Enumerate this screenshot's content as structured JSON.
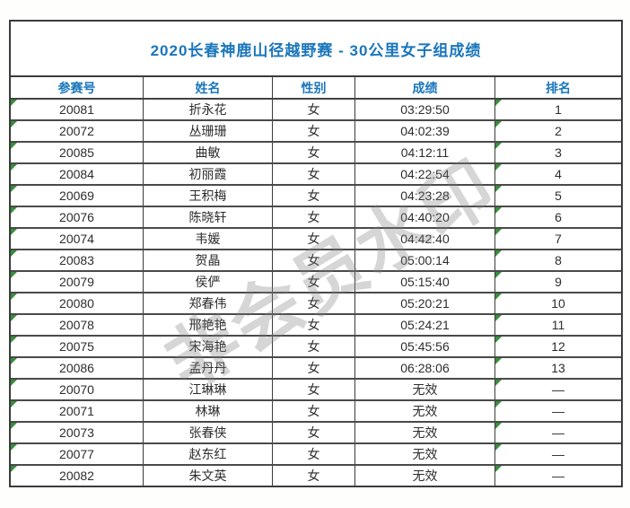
{
  "title": "2020长春神鹿山径越野赛 - 30公里女子组成绩",
  "watermark_text": "非会员水印",
  "colors": {
    "title_blue": "#1a76bb",
    "header_blue": "#1a76bb",
    "error_flag_green": "#3a8e3c",
    "border_dark": "#3b3b3b"
  },
  "table": {
    "columns": [
      "参赛号",
      "姓名",
      "性别",
      "成绩",
      "排名"
    ],
    "rows": [
      {
        "bib": "20081",
        "name": "折永花",
        "gender": "女",
        "result": "03:29:50",
        "rank": "1"
      },
      {
        "bib": "20072",
        "name": "丛珊珊",
        "gender": "女",
        "result": "04:02:39",
        "rank": "2"
      },
      {
        "bib": "20085",
        "name": "曲敏",
        "gender": "女",
        "result": "04:12:11",
        "rank": "3"
      },
      {
        "bib": "20084",
        "name": "初丽霞",
        "gender": "女",
        "result": "04:22:54",
        "rank": "4"
      },
      {
        "bib": "20069",
        "name": "王积梅",
        "gender": "女",
        "result": "04:23:28",
        "rank": "5"
      },
      {
        "bib": "20076",
        "name": "陈晓轩",
        "gender": "女",
        "result": "04:40:20",
        "rank": "6"
      },
      {
        "bib": "20074",
        "name": "韦媛",
        "gender": "女",
        "result": "04:42:40",
        "rank": "7"
      },
      {
        "bib": "20083",
        "name": "贺晶",
        "gender": "女",
        "result": "05:00:14",
        "rank": "8"
      },
      {
        "bib": "20079",
        "name": "侯俨",
        "gender": "女",
        "result": "05:15:40",
        "rank": "9"
      },
      {
        "bib": "20080",
        "name": "郑春伟",
        "gender": "女",
        "result": "05:20:21",
        "rank": "10"
      },
      {
        "bib": "20078",
        "name": "邢艳艳",
        "gender": "女",
        "result": "05:24:21",
        "rank": "11"
      },
      {
        "bib": "20075",
        "name": "宋海艳",
        "gender": "女",
        "result": "05:45:56",
        "rank": "12"
      },
      {
        "bib": "20086",
        "name": "孟丹丹",
        "gender": "女",
        "result": "06:28:06",
        "rank": "13"
      },
      {
        "bib": "20070",
        "name": "江琳琳",
        "gender": "女",
        "result": "无效",
        "rank": "—"
      },
      {
        "bib": "20071",
        "name": "林琳",
        "gender": "女",
        "result": "无效",
        "rank": "—"
      },
      {
        "bib": "20073",
        "name": "张春侠",
        "gender": "女",
        "result": "无效",
        "rank": "—"
      },
      {
        "bib": "20077",
        "name": "赵东红",
        "gender": "女",
        "result": "无效",
        "rank": "—"
      },
      {
        "bib": "20082",
        "name": "朱文英",
        "gender": "女",
        "result": "无效",
        "rank": "—"
      }
    ]
  }
}
